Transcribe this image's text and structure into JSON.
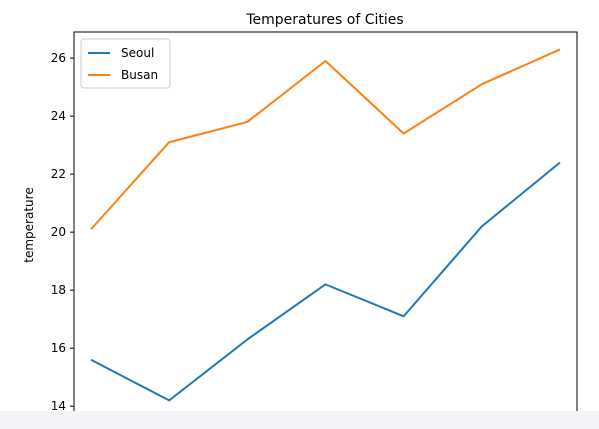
{
  "chart_data": {
    "type": "line",
    "title": "Temperatures of Cities",
    "xlabel": "",
    "ylabel": "temperature",
    "x": [
      0,
      1,
      2,
      3,
      4,
      5,
      6
    ],
    "ylim": [
      13.8,
      26.9
    ],
    "yticks": [
      14,
      16,
      18,
      20,
      22,
      24,
      26
    ],
    "grid": false,
    "legend_position": "top-left",
    "series": [
      {
        "name": "Seoul",
        "color": "#1f77b4",
        "values": [
          15.6,
          14.2,
          16.3,
          18.2,
          17.1,
          20.2,
          22.4
        ]
      },
      {
        "name": "Busan",
        "color": "#ff7f0e",
        "values": [
          20.1,
          23.1,
          23.8,
          25.9,
          23.4,
          25.1,
          26.3
        ]
      }
    ]
  }
}
